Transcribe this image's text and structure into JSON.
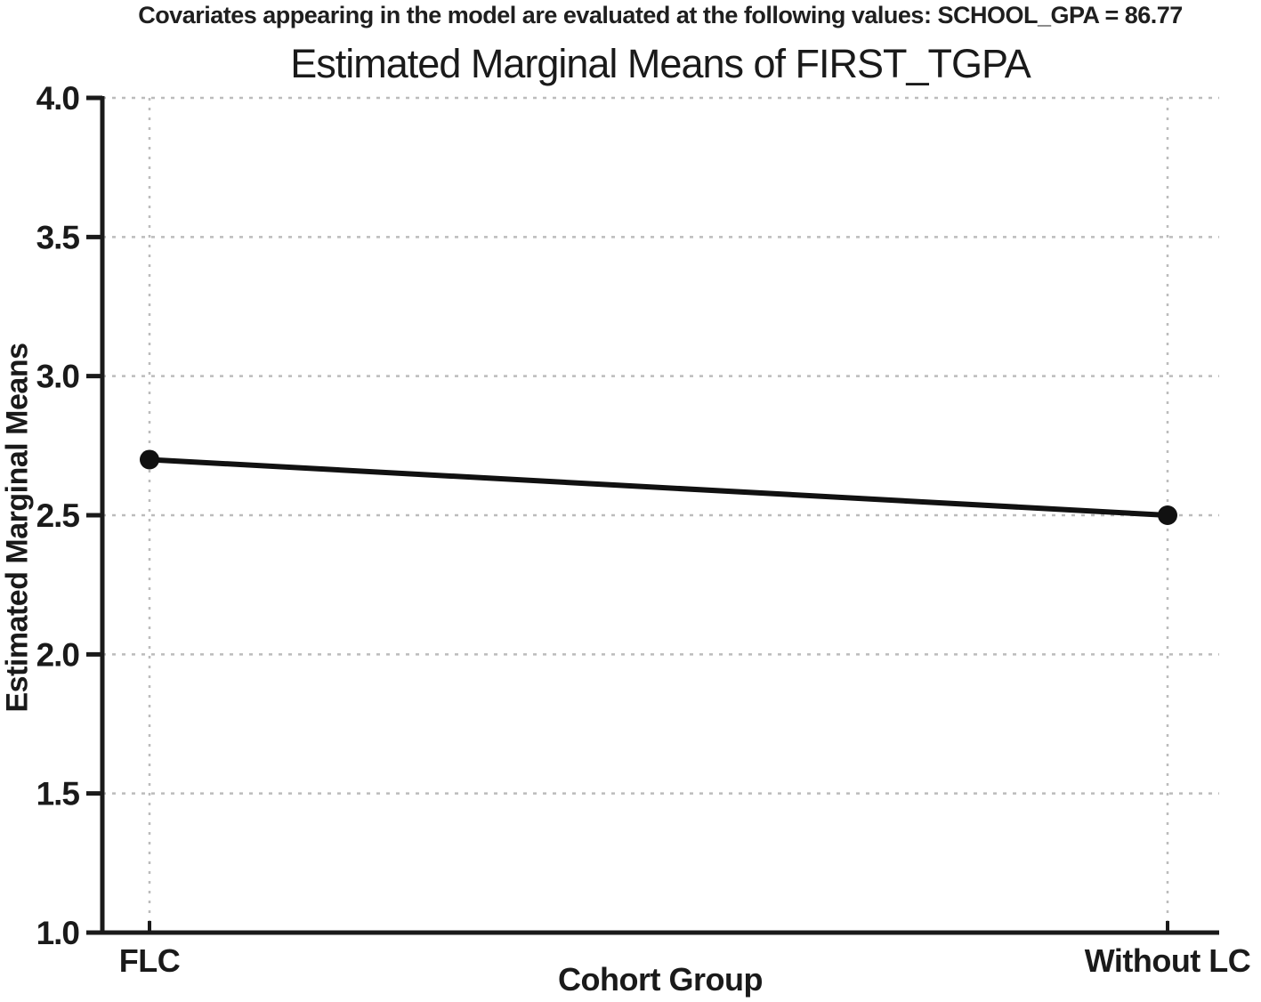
{
  "figure": {
    "note": "Covariates appearing in the model are evaluated at the following values: SCHOOL_GPA = 86.77"
  },
  "chart_data": {
    "type": "line",
    "title": "Estimated Marginal Means of FIRST_TGPA",
    "note": "Covariates appearing in the model are evaluated at the following values: SCHOOL_GPA = 86.77",
    "xlabel": "Cohort Group",
    "ylabel": "Estimated Marginal Means",
    "categories": [
      "FLC",
      "Without LC"
    ],
    "series": [
      {
        "name": "Estimated Marginal Means of FIRST_TGPA",
        "values": [
          2.7,
          2.5
        ]
      }
    ],
    "ylim": [
      1.0,
      4.0
    ],
    "yticks": [
      1.0,
      1.5,
      2.0,
      2.5,
      3.0,
      3.5,
      4.0
    ],
    "ytick_labels": [
      "1.0",
      "1.5",
      "2.0",
      "2.5",
      "3.0",
      "3.5",
      "4.0"
    ],
    "grid": {
      "horizontal": true,
      "vertical": true,
      "style": "dashed"
    },
    "legend": "none",
    "colors": {
      "line": "#111111",
      "marker": "#111111",
      "grid": "#bcbcbc",
      "axis": "#1a1a1a",
      "text": "#1a1a1a",
      "background": "#ffffff"
    }
  }
}
